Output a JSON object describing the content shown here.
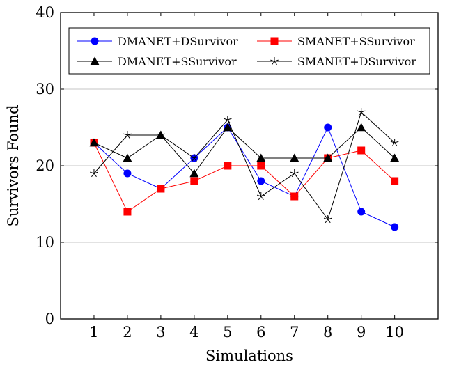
{
  "chart_data": {
    "type": "line",
    "xlabel": "Simulations",
    "ylabel": "Survivors Found",
    "x": [
      1,
      2,
      3,
      4,
      5,
      6,
      7,
      8,
      9,
      10
    ],
    "x_ticks": [
      "1",
      "2",
      "3",
      "4",
      "5",
      "6",
      "7",
      "8",
      "9",
      "10"
    ],
    "ylim": [
      0,
      40
    ],
    "y_ticks": [
      "0",
      "10",
      "20",
      "30",
      "40"
    ],
    "grid": "horizontal",
    "legend_position": "top",
    "series": [
      {
        "name": "DMANET+DSurvivor",
        "color": "#0000ff",
        "marker": "circle",
        "values": [
          23,
          19,
          17,
          21,
          25,
          18,
          16,
          25,
          14,
          12
        ]
      },
      {
        "name": "SMANET+SSurvivor",
        "color": "#ff0000",
        "marker": "square",
        "values": [
          23,
          14,
          17,
          18,
          20,
          20,
          16,
          21,
          22,
          18
        ]
      },
      {
        "name": "DMANET+SSurvivor",
        "color": "#000000",
        "marker": "triangle",
        "values": [
          23,
          21,
          24,
          19,
          25,
          21,
          21,
          21,
          25,
          21
        ]
      },
      {
        "name": "SMANET+DSurvivor",
        "color": "#000000",
        "marker": "star",
        "values": [
          19,
          24,
          24,
          21,
          26,
          16,
          19,
          13,
          27,
          23
        ]
      }
    ]
  }
}
